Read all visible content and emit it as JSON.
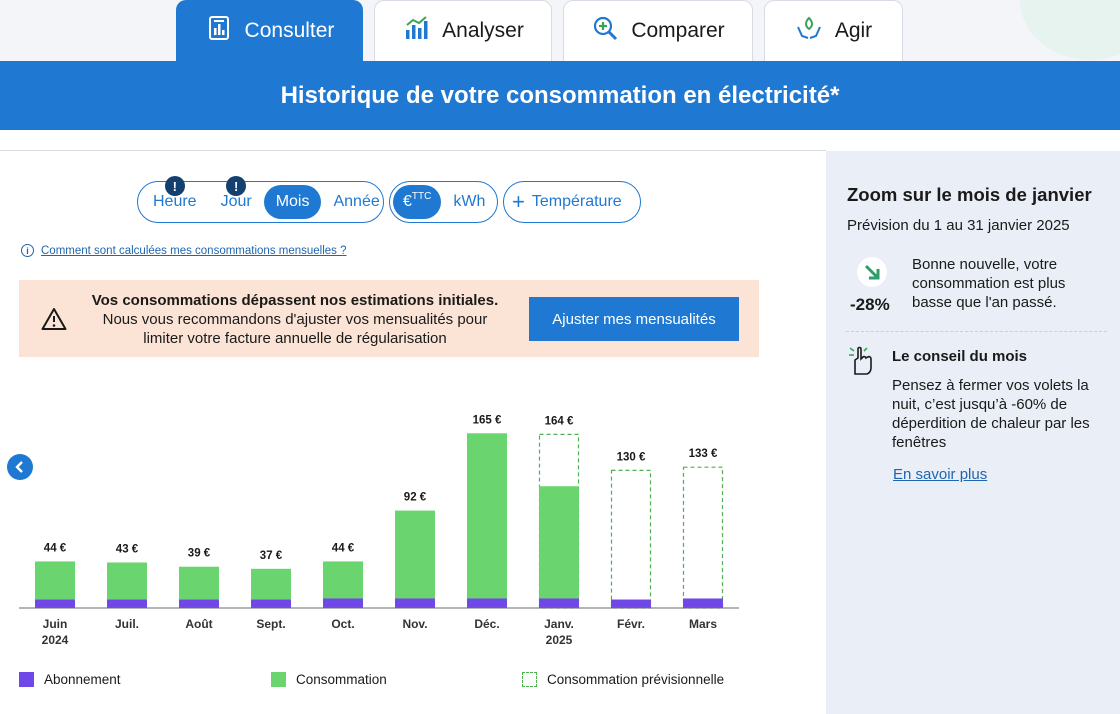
{
  "tabs": [
    {
      "label": "Consulter",
      "icon": "document-chart-icon",
      "active": true
    },
    {
      "label": "Analyser",
      "icon": "bar-chart-icon",
      "active": false
    },
    {
      "label": "Comparer",
      "icon": "magnifier-compare-icon",
      "active": false
    },
    {
      "label": "Agir",
      "icon": "hands-leaf-icon",
      "active": false
    }
  ],
  "banner": {
    "title": "Historique de votre consommation en électricité*"
  },
  "filters": {
    "period": [
      "Heure",
      "Jour",
      "Mois",
      "Année"
    ],
    "period_selected": "Mois",
    "alert_badge": "!",
    "unit_euro": "€",
    "unit_euro_sup": "TTC",
    "unit_kwh": "kWh",
    "temperature": "Température"
  },
  "info_link": "Comment sont calculées mes consommations mensuelles ?",
  "alert": {
    "title": "Vos consommations dépassent nos estimations initiales.",
    "body": "Nous vous recommandons d'ajuster vos mensualités pour limiter votre facture annuelle de régularisation",
    "button": "Ajuster mes mensualités"
  },
  "colors": {
    "brand": "#1f78d1",
    "abonnement": "#7048e8",
    "consommation": "#6ad46f",
    "previsionnel_border": "#4fb04f"
  },
  "chart_data": {
    "type": "bar",
    "categories": [
      "Juin",
      "Juil.",
      "Août",
      "Sept.",
      "Oct.",
      "Nov.",
      "Déc.",
      "Janv.",
      "Févr.",
      "Mars"
    ],
    "year_labels": [
      "2024",
      "",
      "",
      "",
      "",
      "",
      "",
      "2025",
      "",
      ""
    ],
    "value_labels": [
      "44 €",
      "43 €",
      "39 €",
      "37 €",
      "44 €",
      "92 €",
      "165 €",
      "164 €",
      "130 €",
      "133 €"
    ],
    "series": [
      {
        "name": "Abonnement",
        "values": [
          8,
          8,
          8,
          8,
          9,
          9,
          9,
          9,
          8,
          9
        ]
      },
      {
        "name": "Consommation",
        "values": [
          36,
          35,
          31,
          29,
          35,
          83,
          156,
          106,
          0,
          0
        ]
      },
      {
        "name": "Consommation prévisionnelle",
        "values": [
          0,
          0,
          0,
          0,
          0,
          0,
          0,
          49,
          122,
          124
        ]
      }
    ],
    "totals": [
      44,
      43,
      39,
      37,
      44,
      92,
      165,
      164,
      130,
      133
    ],
    "ylim": [
      0,
      170
    ],
    "grid": false
  },
  "legend": {
    "abonnement": "Abonnement",
    "consommation": "Consommation",
    "previsionnelle": "Consommation prévisionnelle"
  },
  "sidebar": {
    "title": "Zoom sur le mois de janvier",
    "subtitle": "Prévision du 1 au 31 janvier 2025",
    "percent": "-28%",
    "good_news": "Bonne nouvelle, votre consommation est plus basse que l'an passé.",
    "tip_title": "Le conseil du mois",
    "tip_body": "Pensez à fermer vos volets la nuit, c’est jusqu’à -60% de déperdition de chaleur par les fenêtres",
    "link": "En savoir plus"
  }
}
